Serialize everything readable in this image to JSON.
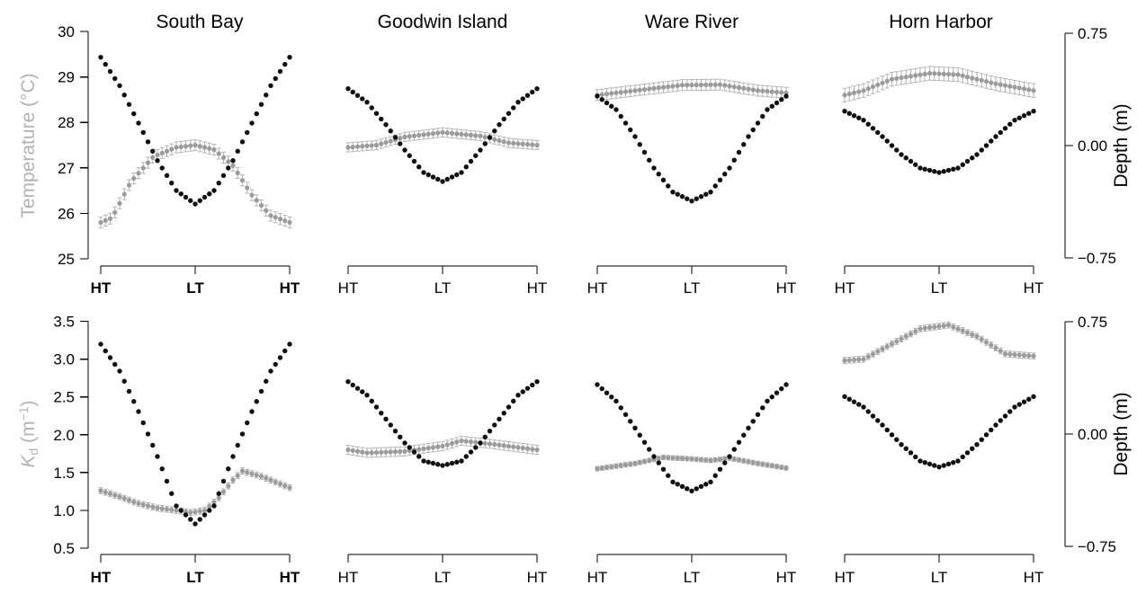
{
  "colors": {
    "temperature_kd": "#9b9b9b",
    "error_bar": "#b4b4b4",
    "depth": "#111111",
    "left_axis_label": "#b3b3b3"
  },
  "panel_titles": [
    "South Bay",
    "Goodwin Island",
    "Ware River",
    "Horn Harbor"
  ],
  "axes": {
    "row0_left_label": "Temperature (°C)",
    "row1_left_label_main": "K",
    "row1_left_label_sub": "d",
    "row1_left_label_unit": " (m",
    "row1_left_label_unit_sup": "−1",
    "row1_left_label_close": ")",
    "right_label": "Depth (m)",
    "row0_left_ticks": [
      "25",
      "26",
      "27",
      "28",
      "29",
      "30"
    ],
    "row1_left_ticks": [
      "0.5",
      "1.0",
      "1.5",
      "2.0",
      "2.5",
      "3.0",
      "3.5"
    ],
    "right_ticks": [
      "−0.75",
      "0.00",
      "0.75"
    ],
    "x_ticks": [
      "HT",
      "LT",
      "HT"
    ]
  },
  "chart_data": [
    {
      "type": "scatter",
      "row": 0,
      "panel": 0,
      "title": "South Bay",
      "left_variable": "Temperature (°C)",
      "left_ylim": [
        25,
        30
      ],
      "right_ylim": [
        -0.75,
        0.75
      ],
      "x_ticks": [
        "HT",
        "LT",
        "HT"
      ],
      "n_points": 41,
      "left_series": {
        "name": "Temperature",
        "control": [
          [
            0,
            25.8
          ],
          [
            0.06,
            25.9
          ],
          [
            0.16,
            26.7
          ],
          [
            0.28,
            27.25
          ],
          [
            0.4,
            27.45
          ],
          [
            0.5,
            27.5
          ],
          [
            0.6,
            27.4
          ],
          [
            0.7,
            27.05
          ],
          [
            0.8,
            26.4
          ],
          [
            0.9,
            25.95
          ],
          [
            1,
            25.8
          ]
        ],
        "err": 0.12
      },
      "depth_series": {
        "name": "Depth",
        "control": [
          [
            0,
            0.59
          ],
          [
            0.1,
            0.4
          ],
          [
            0.2,
            0.15
          ],
          [
            0.3,
            -0.1
          ],
          [
            0.4,
            -0.3
          ],
          [
            0.5,
            -0.39
          ],
          [
            0.6,
            -0.3
          ],
          [
            0.7,
            -0.1
          ],
          [
            0.8,
            0.15
          ],
          [
            0.9,
            0.4
          ],
          [
            1,
            0.59
          ]
        ]
      }
    },
    {
      "type": "scatter",
      "row": 0,
      "panel": 1,
      "title": "Goodwin Island",
      "left_variable": "Temperature (°C)",
      "left_ylim": [
        25,
        30
      ],
      "right_ylim": [
        -0.75,
        0.75
      ],
      "x_ticks": [
        "HT",
        "LT",
        "HT"
      ],
      "n_points": 41,
      "left_series": {
        "name": "Temperature",
        "control": [
          [
            0,
            27.45
          ],
          [
            0.15,
            27.5
          ],
          [
            0.3,
            27.68
          ],
          [
            0.5,
            27.78
          ],
          [
            0.7,
            27.7
          ],
          [
            0.85,
            27.55
          ],
          [
            1,
            27.5
          ]
        ],
        "err": 0.1
      },
      "depth_series": {
        "name": "Depth",
        "control": [
          [
            0,
            0.38
          ],
          [
            0.1,
            0.29
          ],
          [
            0.2,
            0.14
          ],
          [
            0.3,
            -0.03
          ],
          [
            0.4,
            -0.18
          ],
          [
            0.5,
            -0.24
          ],
          [
            0.6,
            -0.18
          ],
          [
            0.7,
            -0.03
          ],
          [
            0.8,
            0.14
          ],
          [
            0.9,
            0.29
          ],
          [
            1,
            0.38
          ]
        ]
      }
    },
    {
      "type": "scatter",
      "row": 0,
      "panel": 2,
      "title": "Ware River",
      "left_variable": "Temperature (°C)",
      "left_ylim": [
        25,
        30
      ],
      "right_ylim": [
        -0.75,
        0.75
      ],
      "x_ticks": [
        "HT",
        "LT",
        "HT"
      ],
      "n_points": 41,
      "left_series": {
        "name": "Temperature",
        "control": [
          [
            0,
            28.6
          ],
          [
            0.2,
            28.7
          ],
          [
            0.45,
            28.82
          ],
          [
            0.65,
            28.83
          ],
          [
            0.85,
            28.7
          ],
          [
            1,
            28.65
          ]
        ],
        "err": 0.12
      },
      "depth_series": {
        "name": "Depth",
        "control": [
          [
            0,
            0.33
          ],
          [
            0.1,
            0.24
          ],
          [
            0.2,
            0.06
          ],
          [
            0.3,
            -0.15
          ],
          [
            0.4,
            -0.31
          ],
          [
            0.5,
            -0.37
          ],
          [
            0.6,
            -0.31
          ],
          [
            0.7,
            -0.15
          ],
          [
            0.8,
            0.06
          ],
          [
            0.9,
            0.24
          ],
          [
            1,
            0.33
          ]
        ]
      }
    },
    {
      "type": "scatter",
      "row": 0,
      "panel": 3,
      "title": "Horn Harbor",
      "left_variable": "Temperature (°C)",
      "left_ylim": [
        25,
        30
      ],
      "right_ylim": [
        -0.75,
        0.75
      ],
      "x_ticks": [
        "HT",
        "LT",
        "HT"
      ],
      "n_points": 41,
      "left_series": {
        "name": "Temperature",
        "control": [
          [
            0,
            28.6
          ],
          [
            0.1,
            28.7
          ],
          [
            0.25,
            28.95
          ],
          [
            0.45,
            29.08
          ],
          [
            0.6,
            29.05
          ],
          [
            0.8,
            28.85
          ],
          [
            1,
            28.7
          ]
        ],
        "err": 0.15
      },
      "depth_series": {
        "name": "Depth",
        "control": [
          [
            0,
            0.23
          ],
          [
            0.1,
            0.17
          ],
          [
            0.2,
            0.06
          ],
          [
            0.3,
            -0.06
          ],
          [
            0.4,
            -0.15
          ],
          [
            0.5,
            -0.18
          ],
          [
            0.6,
            -0.15
          ],
          [
            0.7,
            -0.06
          ],
          [
            0.8,
            0.06
          ],
          [
            0.9,
            0.17
          ],
          [
            1,
            0.23
          ]
        ]
      }
    },
    {
      "type": "scatter",
      "row": 1,
      "panel": 0,
      "title": "South Bay",
      "left_variable": "Kd (m−1)",
      "left_ylim": [
        0.5,
        3.5
      ],
      "right_ylim": [
        -0.75,
        0.75
      ],
      "x_ticks": [
        "HT",
        "LT",
        "HT"
      ],
      "n_points": 41,
      "left_series": {
        "name": "Kd",
        "control": [
          [
            0,
            1.26
          ],
          [
            0.1,
            1.18
          ],
          [
            0.2,
            1.09
          ],
          [
            0.3,
            1.03
          ],
          [
            0.4,
            1.0
          ],
          [
            0.48,
            0.97
          ],
          [
            0.55,
            1.0
          ],
          [
            0.62,
            1.15
          ],
          [
            0.7,
            1.4
          ],
          [
            0.75,
            1.52
          ],
          [
            0.85,
            1.45
          ],
          [
            1,
            1.3
          ]
        ],
        "err": 0.04
      },
      "depth_series": {
        "name": "Depth",
        "control": [
          [
            0,
            0.6
          ],
          [
            0.1,
            0.42
          ],
          [
            0.2,
            0.15
          ],
          [
            0.3,
            -0.15
          ],
          [
            0.4,
            -0.48
          ],
          [
            0.5,
            -0.6
          ],
          [
            0.6,
            -0.48
          ],
          [
            0.7,
            -0.15
          ],
          [
            0.8,
            0.15
          ],
          [
            0.9,
            0.42
          ],
          [
            1,
            0.6
          ]
        ]
      }
    },
    {
      "type": "scatter",
      "row": 1,
      "panel": 1,
      "title": "Goodwin Island",
      "left_variable": "Kd (m−1)",
      "left_ylim": [
        0.5,
        3.5
      ],
      "right_ylim": [
        -0.75,
        0.75
      ],
      "x_ticks": [
        "HT",
        "LT",
        "HT"
      ],
      "n_points": 41,
      "left_series": {
        "name": "Kd",
        "control": [
          [
            0,
            1.8
          ],
          [
            0.1,
            1.76
          ],
          [
            0.3,
            1.78
          ],
          [
            0.5,
            1.85
          ],
          [
            0.6,
            1.92
          ],
          [
            0.75,
            1.88
          ],
          [
            1,
            1.8
          ]
        ],
        "err": 0.06
      },
      "depth_series": {
        "name": "Depth",
        "control": [
          [
            0,
            0.35
          ],
          [
            0.1,
            0.26
          ],
          [
            0.2,
            0.1
          ],
          [
            0.3,
            -0.06
          ],
          [
            0.4,
            -0.18
          ],
          [
            0.5,
            -0.21
          ],
          [
            0.6,
            -0.18
          ],
          [
            0.7,
            -0.06
          ],
          [
            0.8,
            0.1
          ],
          [
            0.9,
            0.26
          ],
          [
            1,
            0.35
          ]
        ]
      }
    },
    {
      "type": "scatter",
      "row": 1,
      "panel": 2,
      "title": "Ware River",
      "left_variable": "Kd (m−1)",
      "left_ylim": [
        0.5,
        3.5
      ],
      "right_ylim": [
        -0.75,
        0.75
      ],
      "x_ticks": [
        "HT",
        "LT",
        "HT"
      ],
      "n_points": 41,
      "left_series": {
        "name": "Kd",
        "control": [
          [
            0,
            1.55
          ],
          [
            0.2,
            1.62
          ],
          [
            0.35,
            1.7
          ],
          [
            0.5,
            1.68
          ],
          [
            0.6,
            1.66
          ],
          [
            0.7,
            1.69
          ],
          [
            0.85,
            1.62
          ],
          [
            1,
            1.56
          ]
        ],
        "err": 0.03
      },
      "depth_series": {
        "name": "Depth",
        "control": [
          [
            0,
            0.33
          ],
          [
            0.1,
            0.22
          ],
          [
            0.2,
            0.04
          ],
          [
            0.3,
            -0.15
          ],
          [
            0.4,
            -0.32
          ],
          [
            0.5,
            -0.38
          ],
          [
            0.6,
            -0.32
          ],
          [
            0.7,
            -0.15
          ],
          [
            0.8,
            0.04
          ],
          [
            0.9,
            0.22
          ],
          [
            1,
            0.33
          ]
        ]
      }
    },
    {
      "type": "scatter",
      "row": 1,
      "panel": 3,
      "title": "Horn Harbor",
      "left_variable": "Kd (m−1)",
      "left_ylim": [
        0.5,
        3.5
      ],
      "right_ylim": [
        -0.75,
        0.75
      ],
      "x_ticks": [
        "HT",
        "LT",
        "HT"
      ],
      "n_points": 41,
      "left_series": {
        "name": "Kd",
        "control": [
          [
            0,
            2.98
          ],
          [
            0.1,
            3.0
          ],
          [
            0.25,
            3.2
          ],
          [
            0.4,
            3.4
          ],
          [
            0.55,
            3.45
          ],
          [
            0.7,
            3.3
          ],
          [
            0.85,
            3.07
          ],
          [
            1,
            3.04
          ]
        ],
        "err": 0.04
      },
      "depth_series": {
        "name": "Depth",
        "control": [
          [
            0,
            0.25
          ],
          [
            0.1,
            0.18
          ],
          [
            0.2,
            0.06
          ],
          [
            0.3,
            -0.07
          ],
          [
            0.4,
            -0.18
          ],
          [
            0.5,
            -0.22
          ],
          [
            0.6,
            -0.18
          ],
          [
            0.7,
            -0.07
          ],
          [
            0.8,
            0.06
          ],
          [
            0.9,
            0.18
          ],
          [
            1,
            0.25
          ]
        ]
      }
    }
  ]
}
